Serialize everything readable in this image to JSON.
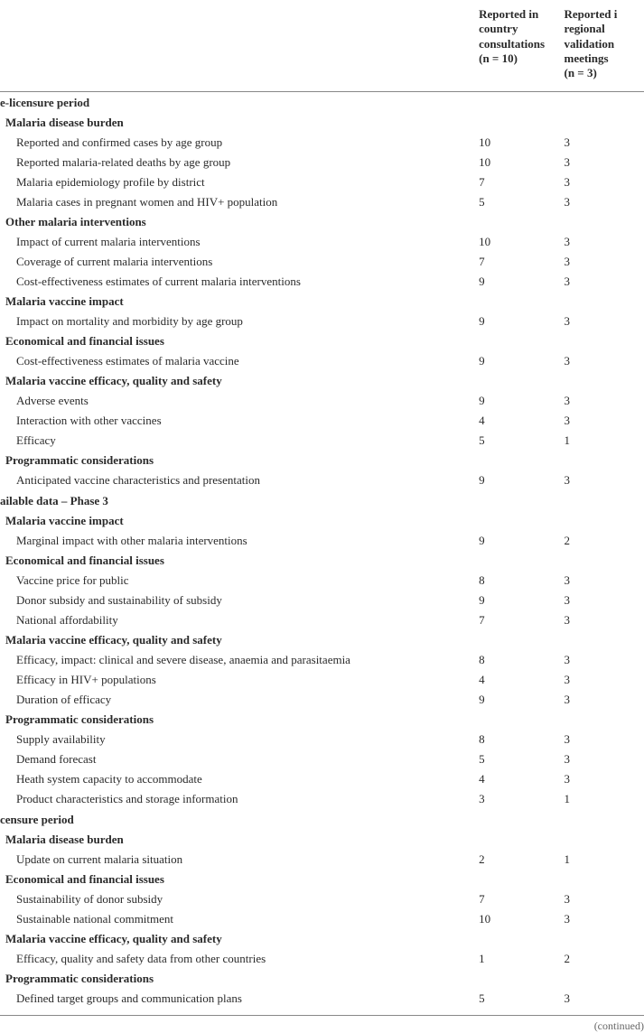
{
  "headers": {
    "col1": "Reported in country consultations",
    "col1_n": "(n = 10)",
    "col2": "Reported i",
    "col2b": "regional validation meetings",
    "col2_n": "(n = 3)"
  },
  "sections": [
    {
      "title": "e-licensure period",
      "groups": [
        {
          "title": "Malaria disease burden",
          "rows": [
            {
              "label": "Reported and confirmed cases by age group",
              "v1": "10",
              "v2": "3"
            },
            {
              "label": "Reported malaria-related deaths by age group",
              "v1": "10",
              "v2": "3"
            },
            {
              "label": "Malaria epidemiology profile by district",
              "v1": "7",
              "v2": "3"
            },
            {
              "label": "Malaria cases in pregnant women and HIV+ population",
              "v1": "5",
              "v2": "3"
            }
          ]
        },
        {
          "title": "Other malaria interventions",
          "rows": [
            {
              "label": "Impact of current malaria interventions",
              "v1": "10",
              "v2": "3"
            },
            {
              "label": "Coverage of current malaria interventions",
              "v1": "7",
              "v2": "3"
            },
            {
              "label": "Cost-effectiveness estimates of current malaria interventions",
              "v1": "9",
              "v2": "3"
            }
          ]
        },
        {
          "title": "Malaria vaccine impact",
          "rows": [
            {
              "label": "Impact on mortality and morbidity by age group",
              "v1": "9",
              "v2": "3"
            }
          ]
        },
        {
          "title": "Economical and financial issues",
          "rows": [
            {
              "label": "Cost-effectiveness estimates of malaria vaccine",
              "v1": "9",
              "v2": "3"
            }
          ]
        },
        {
          "title": "Malaria vaccine efficacy, quality and safety",
          "rows": [
            {
              "label": "Adverse events",
              "v1": "9",
              "v2": "3"
            },
            {
              "label": "Interaction with other vaccines",
              "v1": "4",
              "v2": "3"
            },
            {
              "label": "Efficacy",
              "v1": "5",
              "v2": "1"
            }
          ]
        },
        {
          "title": "Programmatic considerations",
          "rows": [
            {
              "label": "Anticipated vaccine characteristics and presentation",
              "v1": "9",
              "v2": "3"
            }
          ]
        }
      ]
    },
    {
      "title": "ailable data – Phase 3",
      "groups": [
        {
          "title": "Malaria vaccine impact",
          "rows": [
            {
              "label": "Marginal impact with other malaria interventions",
              "v1": "9",
              "v2": "2"
            }
          ]
        },
        {
          "title": "Economical and financial issues",
          "rows": [
            {
              "label": "Vaccine price for public",
              "v1": "8",
              "v2": "3"
            },
            {
              "label": "Donor subsidy and sustainability of subsidy",
              "v1": "9",
              "v2": "3"
            },
            {
              "label": "National affordability",
              "v1": "7",
              "v2": "3"
            }
          ]
        },
        {
          "title": "Malaria vaccine efficacy, quality and safety",
          "rows": [
            {
              "label": "Efficacy, impact: clinical and severe disease, anaemia and parasitaemia",
              "v1": "8",
              "v2": "3"
            },
            {
              "label": "Efficacy in HIV+ populations",
              "v1": "4",
              "v2": "3"
            },
            {
              "label": "Duration of efficacy",
              "v1": "9",
              "v2": "3"
            }
          ]
        },
        {
          "title": "Programmatic considerations",
          "rows": [
            {
              "label": "Supply availability",
              "v1": "8",
              "v2": "3"
            },
            {
              "label": "Demand forecast",
              "v1": "5",
              "v2": "3"
            },
            {
              "label": "Heath system capacity to accommodate",
              "v1": "4",
              "v2": "3"
            },
            {
              "label": "Product characteristics and storage information",
              "v1": "3",
              "v2": "1"
            }
          ]
        }
      ]
    },
    {
      "title": "censure period",
      "groups": [
        {
          "title": "Malaria disease burden",
          "rows": [
            {
              "label": "Update on current malaria situation",
              "v1": "2",
              "v2": "1"
            }
          ]
        },
        {
          "title": "Economical and financial issues",
          "rows": [
            {
              "label": "Sustainability of donor subsidy",
              "v1": "7",
              "v2": "3"
            },
            {
              "label": "Sustainable national commitment",
              "v1": "10",
              "v2": "3"
            }
          ]
        },
        {
          "title": "Malaria vaccine efficacy, quality and safety",
          "rows": [
            {
              "label": "Efficacy, quality and safety data from other countries",
              "v1": "1",
              "v2": "2"
            }
          ]
        },
        {
          "title": "Programmatic considerations",
          "rows": [
            {
              "label": "Defined target groups and communication plans",
              "v1": "5",
              "v2": "3"
            }
          ]
        }
      ]
    }
  ],
  "continued": "(continued)"
}
